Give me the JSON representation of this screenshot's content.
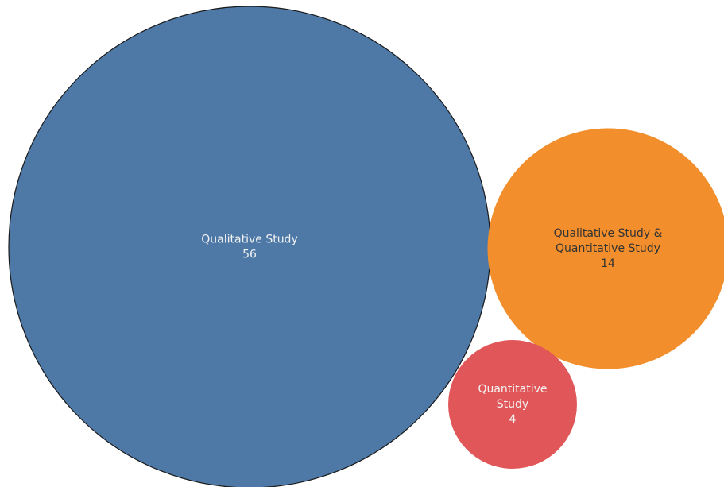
{
  "chart_data": {
    "type": "bubble",
    "bubbles": [
      {
        "label_lines": [
          "Qualitative Study"
        ],
        "value": 56,
        "color": "#4e79a7",
        "text_color": "#f2f2f2"
      },
      {
        "label_lines": [
          "Qualitative Study &",
          "Quantitative Study"
        ],
        "value": 14,
        "color": "#f28e2b",
        "text_color": "#333333"
      },
      {
        "label_lines": [
          "Quantitative",
          "Study"
        ],
        "value": 4,
        "color": "#e15759",
        "text_color": "#f2f2f2"
      }
    ],
    "legend": "none",
    "grid": false
  }
}
